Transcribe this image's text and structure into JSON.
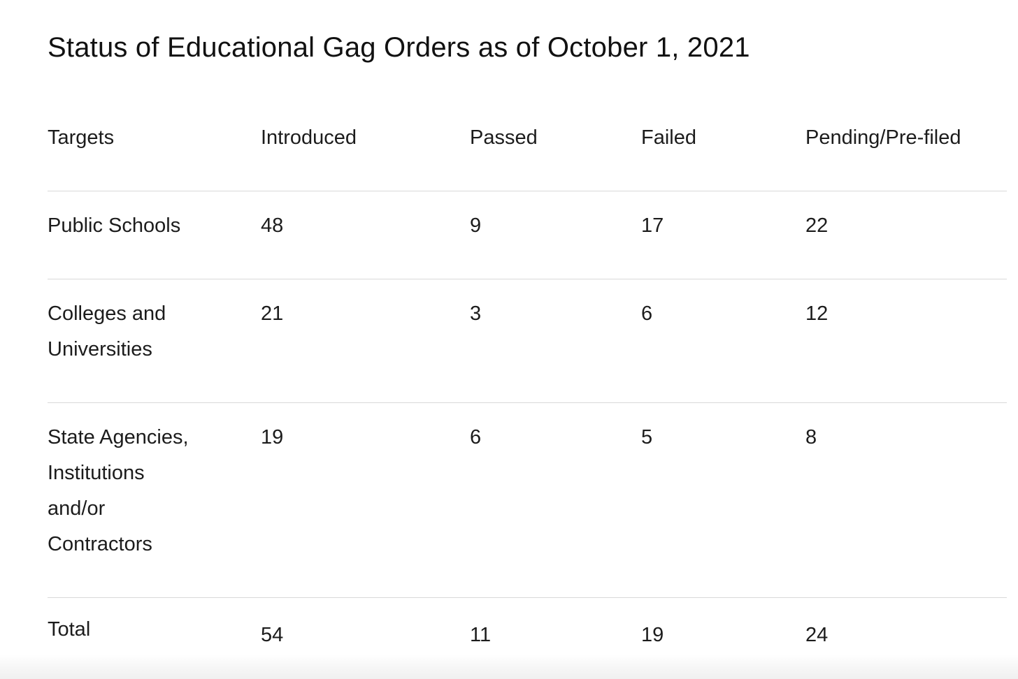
{
  "page": {
    "title": "Status of Educational Gag Orders as of October 1, 2021"
  },
  "chart_data": {
    "type": "table",
    "title": "Status of Educational Gag Orders as of October 1, 2021",
    "columns": [
      "Targets",
      "Introduced",
      "Passed",
      "Failed",
      "Pending/Pre-filed"
    ],
    "rows": [
      {
        "target": "Public Schools",
        "introduced": 48,
        "passed": 9,
        "failed": 17,
        "pending_pre_filed": 22
      },
      {
        "target": "Colleges and Universities",
        "introduced": 21,
        "passed": 3,
        "failed": 6,
        "pending_pre_filed": 12
      },
      {
        "target": "State Agencies, Institutions and/or Contractors",
        "introduced": 19,
        "passed": 6,
        "failed": 5,
        "pending_pre_filed": 8
      },
      {
        "target": "Total",
        "introduced": 54,
        "passed": 11,
        "failed": 19,
        "pending_pre_filed": 24
      }
    ]
  },
  "table": {
    "headers": [
      "Targets",
      "Introduced",
      "Passed",
      "Failed",
      "Pending/Pre-filed"
    ],
    "rows": [
      {
        "label": "Public Schools",
        "values": [
          "48",
          "9",
          "17",
          "22"
        ]
      },
      {
        "label": "Colleges and\nUniversities",
        "values": [
          "21",
          "3",
          "6",
          "12"
        ]
      },
      {
        "label": "State Agencies,\nInstitutions\nand/or\nContractors",
        "values": [
          "19",
          "6",
          "5",
          "8"
        ]
      },
      {
        "label": "Total",
        "values": [
          "54",
          "11",
          "19",
          "24"
        ]
      }
    ]
  },
  "colors": {
    "text": "#1a1a1a",
    "divider": "#d9d9d9",
    "bottom_strip": "#f0f0f0",
    "background": "#ffffff"
  }
}
